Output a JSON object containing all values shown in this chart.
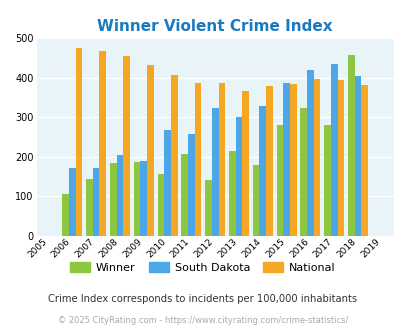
{
  "title": "Winner Violent Crime Index",
  "years": [
    2005,
    2006,
    2007,
    2008,
    2009,
    2010,
    2011,
    2012,
    2013,
    2014,
    2015,
    2016,
    2017,
    2018,
    2019
  ],
  "winner": [
    null,
    105,
    143,
    185,
    188,
    157,
    208,
    142,
    215,
    180,
    280,
    323,
    280,
    458,
    null
  ],
  "south_dakota": [
    null,
    172,
    172,
    205,
    190,
    268,
    257,
    322,
    300,
    328,
    385,
    418,
    433,
    405,
    null
  ],
  "national": [
    null,
    474,
    467,
    455,
    432,
    406,
    387,
    387,
    367,
    379,
    383,
    397,
    394,
    381,
    null
  ],
  "winner_color": "#8dc63f",
  "sd_color": "#4da6e8",
  "national_color": "#f5a623",
  "bg_color": "#e8f4f8",
  "ylim": [
    0,
    500
  ],
  "yticks": [
    0,
    100,
    200,
    300,
    400,
    500
  ],
  "footer1": "Crime Index corresponds to incidents per 100,000 inhabitants",
  "footer2": "© 2025 CityRating.com - https://www.cityrating.com/crime-statistics/",
  "legend_labels": [
    "Winner",
    "South Dakota",
    "National"
  ]
}
